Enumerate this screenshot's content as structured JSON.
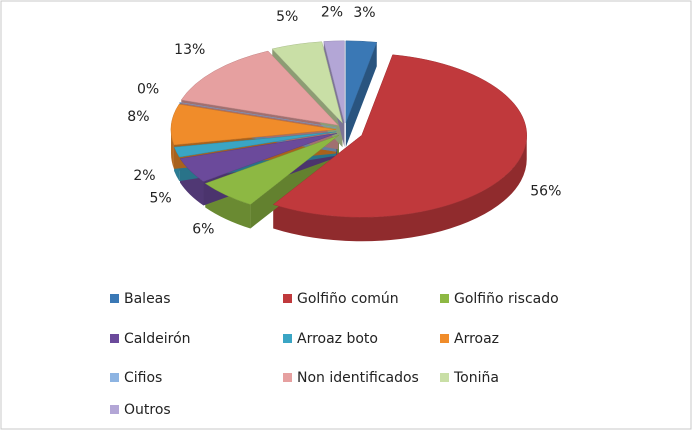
{
  "chart_data": {
    "type": "pie3d",
    "categories": [
      "Baleas",
      "Golfiño común",
      "Golfiño riscado",
      "Caldeirón",
      "Arroaz boto",
      "Arroaz",
      "Cifios",
      "Non identificados",
      "Toniña",
      "Outros"
    ],
    "values": [
      3,
      56,
      6,
      5,
      2,
      8,
      0,
      13,
      5,
      2
    ],
    "value_labels": [
      "3%",
      "56%",
      "6%",
      "5%",
      "2%",
      "8%",
      "0%",
      "13%",
      "5%",
      "2%"
    ],
    "colors": [
      "#3a78b5",
      "#c0393c",
      "#8db843",
      "#6b4a9b",
      "#3aa5c4",
      "#f08c2a",
      "#8db4e2",
      "#e6a0a0",
      "#c9dfa6",
      "#b3a6d6"
    ],
    "legend": "bottom"
  }
}
